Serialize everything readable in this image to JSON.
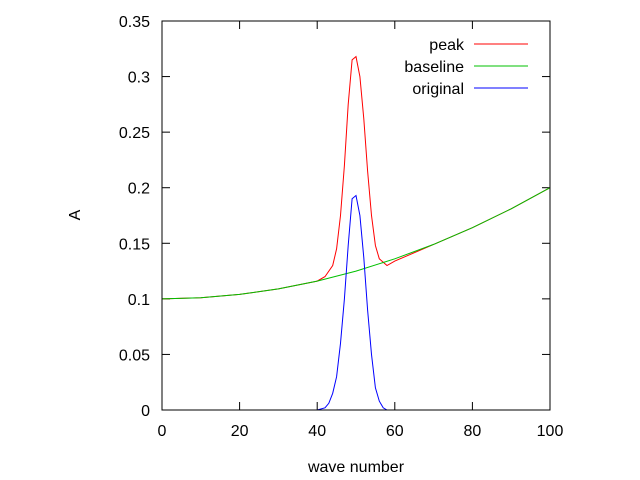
{
  "chart_data": {
    "type": "line",
    "title": "",
    "xlabel": "wave number",
    "ylabel": "A",
    "xlim": [
      0,
      100
    ],
    "ylim": [
      0,
      0.35
    ],
    "x_ticks": [
      0,
      20,
      40,
      60,
      80,
      100
    ],
    "y_ticks": [
      0,
      0.05,
      0.1,
      0.15,
      0.2,
      0.25,
      0.3,
      0.35
    ],
    "x_tick_labels": [
      "0",
      "20",
      "40",
      "60",
      "80",
      "100"
    ],
    "y_tick_labels": [
      "0",
      "0.05",
      "0.1",
      "0.15",
      "0.2",
      "0.25",
      "0.3",
      "0.35"
    ],
    "grid": false,
    "legend_position": "top-right",
    "series": [
      {
        "name": "peak",
        "color": "#ff0000",
        "x": [
          0,
          10,
          20,
          30,
          40,
          42,
          44,
          45,
          46,
          47,
          48,
          49,
          50,
          51,
          52,
          53,
          54,
          55,
          56,
          58,
          60,
          70,
          80,
          90,
          100
        ],
        "y": [
          0.1,
          0.101,
          0.104,
          0.109,
          0.116,
          0.12,
          0.13,
          0.145,
          0.175,
          0.22,
          0.275,
          0.315,
          0.318,
          0.3,
          0.262,
          0.215,
          0.175,
          0.148,
          0.136,
          0.13,
          0.134,
          0.149,
          0.164,
          0.181,
          0.2
        ]
      },
      {
        "name": "baseline",
        "color": "#00c000",
        "x": [
          0,
          10,
          20,
          30,
          40,
          50,
          60,
          70,
          80,
          90,
          100
        ],
        "y": [
          0.1,
          0.101,
          0.104,
          0.109,
          0.116,
          0.125,
          0.136,
          0.149,
          0.164,
          0.181,
          0.2
        ]
      },
      {
        "name": "original",
        "color": "#0000ff",
        "x": [
          0,
          40,
          42,
          43,
          44,
          45,
          46,
          47,
          48,
          49,
          50,
          51,
          52,
          53,
          54,
          55,
          56,
          57,
          58,
          60,
          100
        ],
        "y": [
          0,
          0,
          0.002,
          0.006,
          0.015,
          0.03,
          0.06,
          0.1,
          0.148,
          0.19,
          0.193,
          0.175,
          0.137,
          0.09,
          0.05,
          0.02,
          0.008,
          0.002,
          0,
          0,
          0
        ]
      }
    ]
  }
}
